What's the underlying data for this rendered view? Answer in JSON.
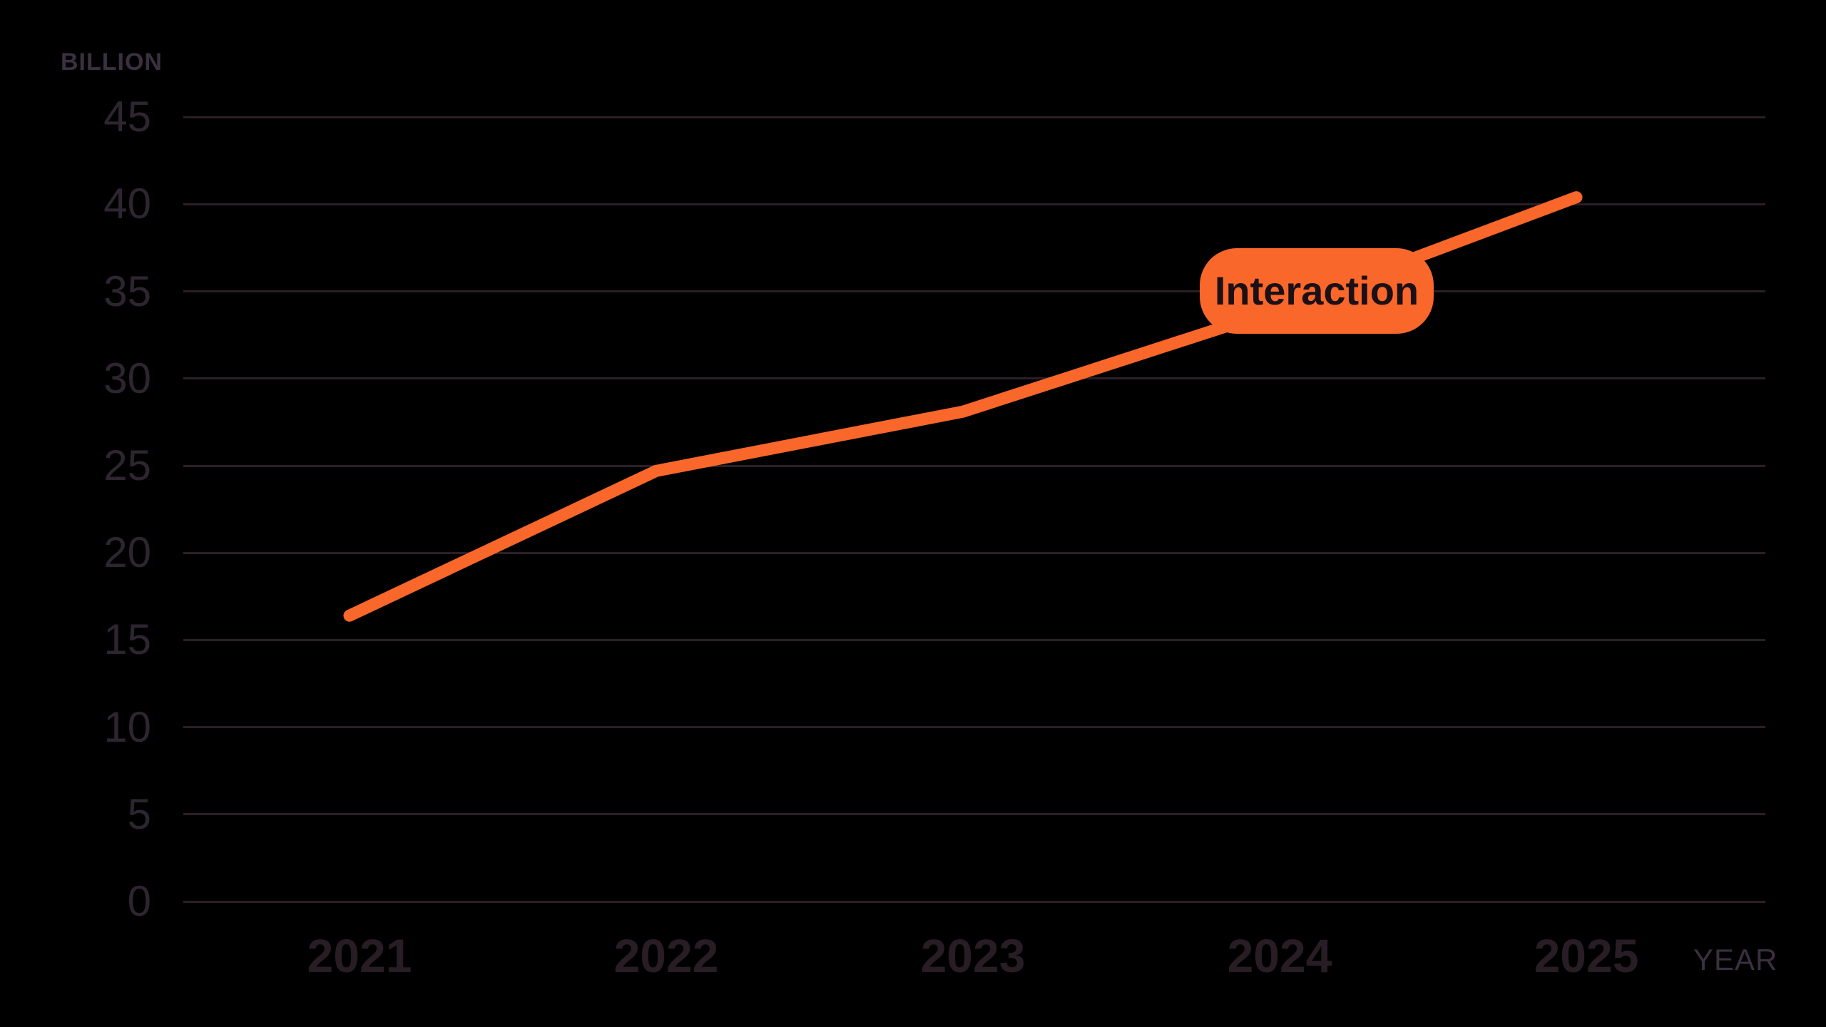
{
  "ui": {
    "y_axis_caption": "BILLION",
    "x_axis_caption": "YEAR",
    "annotation_label": "Interaction"
  },
  "colors": {
    "background": "#000000",
    "line": "#F9672B",
    "gridline": "#2B1F26",
    "y_tick_label": "#2E2531",
    "x_tick_label": "#281D24",
    "axis_caption": "#3A3040",
    "annotation_pill_bg": "#F9672B",
    "annotation_pill_text": "#1B1016"
  },
  "chart_data": {
    "type": "line",
    "title": "",
    "categories": [
      "2021",
      "2022",
      "2023",
      "2024",
      "2025"
    ],
    "series": [
      {
        "name": "Interaction",
        "values": [
          16.4,
          24.7,
          28.1,
          33.8,
          40.4
        ]
      }
    ],
    "xlabel": "YEAR",
    "ylabel": "BILLION",
    "ylim": [
      0,
      45
    ],
    "yticks": [
      0,
      5,
      10,
      15,
      20,
      25,
      30,
      35,
      40,
      45
    ],
    "grid": true,
    "legend": "none",
    "annotation": {
      "text": "Interaction",
      "near_category": "2024",
      "style": "orange-rounded-pill-over-line"
    }
  }
}
